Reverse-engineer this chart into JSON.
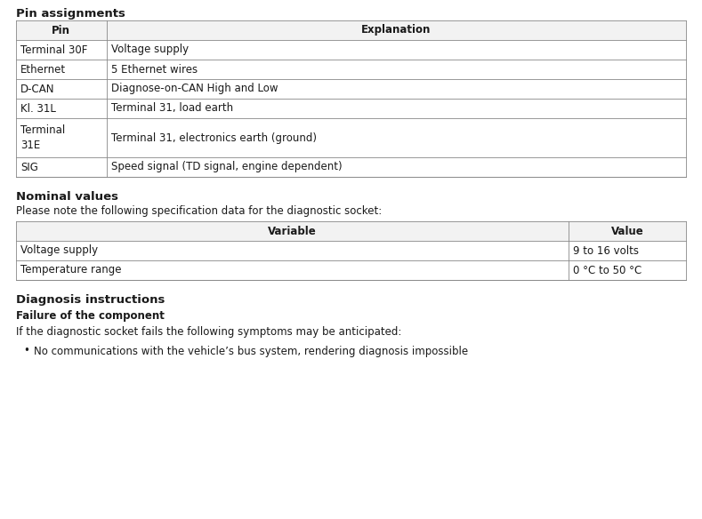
{
  "title1": "Pin assignments",
  "pin_table_headers": [
    "Pin",
    "Explanation"
  ],
  "pin_table_rows": [
    [
      "Terminal 30F",
      "Voltage supply"
    ],
    [
      "Ethernet",
      "5 Ethernet wires"
    ],
    [
      "D-CAN",
      "Diagnose-on-CAN High and Low"
    ],
    [
      "Kl. 31L",
      "Terminal 31, load earth"
    ],
    [
      "Terminal\n31E",
      "Terminal 31, electronics earth (ground)"
    ],
    [
      "SIG",
      "Speed signal (TD signal, engine dependent)"
    ]
  ],
  "title2": "Nominal values",
  "subtitle2": "Please note the following specification data for the diagnostic socket:",
  "nominal_table_headers": [
    "Variable",
    "Value"
  ],
  "nominal_table_rows": [
    [
      "Voltage supply",
      "9 to 16 volts"
    ],
    [
      "Temperature range",
      "0 °C to 50 °C"
    ]
  ],
  "title3": "Diagnosis instructions",
  "title4": "Failure of the component",
  "paragraph": "If the diagnostic socket fails the following symptoms may be anticipated:",
  "bullet": "No communications with the vehicle’s bus system, rendering diagnosis impossible",
  "bg_color": "#ffffff",
  "text_color": "#1a1a1a",
  "header_bg": "#f2f2f2",
  "border_color": "#888888",
  "font_size_body": 8.5,
  "font_size_heading": 9.5,
  "pin_col_ratio": 0.135,
  "nominal_col2_ratio": 0.175
}
